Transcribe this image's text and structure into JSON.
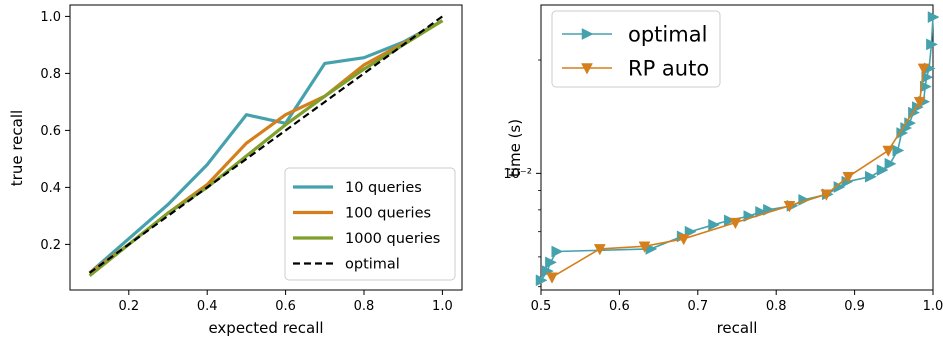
{
  "colors": {
    "teal": "#45a2ad",
    "orange": "#d47f1c",
    "olive": "#7fa12b",
    "black": "#000000"
  },
  "chart_data": [
    {
      "type": "line",
      "xlabel": "expected recall",
      "ylabel": "true recall",
      "xlim": [
        0.05,
        1.05
      ],
      "ylim": [
        0.04,
        1.04
      ],
      "xticks": [
        0.2,
        0.4,
        0.6,
        0.8,
        1.0
      ],
      "yticks": [
        0.2,
        0.4,
        0.6,
        0.8,
        1.0
      ],
      "xtick_labels": [
        "0.2",
        "0.4",
        "0.6",
        "0.8",
        "1.0"
      ],
      "ytick_labels": [
        "0.2",
        "0.4",
        "0.6",
        "0.8",
        "1.0"
      ],
      "legend_position": "bottom-right",
      "series": [
        {
          "name": "10 queries",
          "color": "#45a2ad",
          "style": "solid",
          "x": [
            0.1,
            0.2,
            0.3,
            0.4,
            0.5,
            0.6,
            0.7,
            0.8,
            0.9,
            1.0
          ],
          "y": [
            0.1,
            0.22,
            0.34,
            0.48,
            0.655,
            0.625,
            0.835,
            0.855,
            0.91,
            0.985
          ]
        },
        {
          "name": "100 queries",
          "color": "#d47f1c",
          "style": "solid",
          "x": [
            0.1,
            0.2,
            0.3,
            0.4,
            0.5,
            0.6,
            0.7,
            0.8,
            0.9,
            1.0
          ],
          "y": [
            0.1,
            0.2,
            0.31,
            0.41,
            0.555,
            0.655,
            0.72,
            0.83,
            0.905,
            0.985
          ]
        },
        {
          "name": "1000 queries",
          "color": "#7fa12b",
          "style": "solid",
          "x": [
            0.1,
            0.2,
            0.3,
            0.4,
            0.5,
            0.6,
            0.7,
            0.8,
            0.9,
            1.0
          ],
          "y": [
            0.09,
            0.2,
            0.31,
            0.4,
            0.51,
            0.62,
            0.72,
            0.815,
            0.9,
            0.985
          ]
        },
        {
          "name": "optimal",
          "color": "#000000",
          "style": "dashed",
          "x": [
            0.1,
            1.0
          ],
          "y": [
            0.1,
            1.0
          ]
        }
      ]
    },
    {
      "type": "line",
      "xlabel": "recall",
      "ylabel": "time (s)",
      "yscale": "log",
      "xlim": [
        0.5,
        1.0
      ],
      "ylim": [
        0.0049,
        0.028
      ],
      "xticks": [
        0.5,
        0.6,
        0.7,
        0.8,
        0.9,
        1.0
      ],
      "xtick_labels": [
        "0.5",
        "0.6",
        "0.7",
        "0.8",
        "0.9",
        "1.0"
      ],
      "yticks": [
        0.01
      ],
      "ytick_labels": [
        "10⁻²"
      ],
      "legend_position": "top-left",
      "series": [
        {
          "name": "optimal",
          "color": "#45a2ad",
          "marker": "triangle-right",
          "x": [
            0.5,
            0.508,
            0.512,
            0.52,
            0.64,
            0.68,
            0.69,
            0.72,
            0.74,
            0.765,
            0.78,
            0.79,
            0.82,
            0.835,
            0.865,
            0.88,
            0.89,
            0.92,
            0.935,
            0.945,
            0.955,
            0.96,
            0.965,
            0.97,
            0.975,
            0.98,
            0.988,
            0.99,
            0.992,
            0.995,
            0.998,
            1.0
          ],
          "y": [
            0.0052,
            0.0055,
            0.0058,
            0.0062,
            0.0063,
            0.0068,
            0.007,
            0.0073,
            0.0075,
            0.0077,
            0.0079,
            0.008,
            0.0082,
            0.0085,
            0.0088,
            0.0092,
            0.0095,
            0.0098,
            0.0102,
            0.0106,
            0.0115,
            0.0128,
            0.0132,
            0.0136,
            0.0145,
            0.015,
            0.0155,
            0.017,
            0.018,
            0.019,
            0.022,
            0.026
          ]
        },
        {
          "name": "RP auto",
          "color": "#d47f1c",
          "marker": "triangle-down",
          "x": [
            0.514,
            0.575,
            0.632,
            0.682,
            0.748,
            0.817,
            0.864,
            0.892,
            0.943,
            0.983,
            0.988
          ],
          "y": [
            0.0053,
            0.0063,
            0.0064,
            0.0067,
            0.0074,
            0.0082,
            0.0088,
            0.0098,
            0.0115,
            0.0155,
            0.019
          ]
        }
      ]
    }
  ]
}
